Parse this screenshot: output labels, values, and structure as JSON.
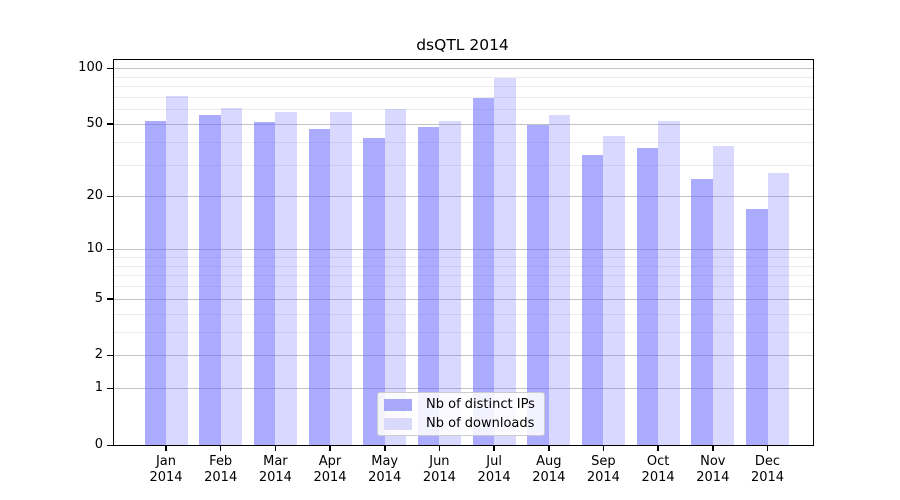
{
  "figure": {
    "background": "#ffffff",
    "spine_color": "#000000",
    "major_grid_color": "#c3c3c3",
    "minor_grid_color": "#ebebeb"
  },
  "chart_data": {
    "type": "bar",
    "title": "dsQTL 2014",
    "categories": [
      "Jan 2014",
      "Feb 2014",
      "Mar 2014",
      "Apr 2014",
      "May 2014",
      "Jun 2014",
      "Jul 2014",
      "Aug 2014",
      "Sep 2014",
      "Oct 2014",
      "Nov 2014",
      "Dec 2014"
    ],
    "month_labels": [
      "Jan",
      "Feb",
      "Mar",
      "Apr",
      "May",
      "Jun",
      "Jul",
      "Aug",
      "Sep",
      "Oct",
      "Nov",
      "Dec"
    ],
    "year_label": "2014",
    "series": [
      {
        "name": "Nb of distinct IPs",
        "color": "rgba(102,102,255,0.55)",
        "solid_color": "#a9a9fb",
        "values": [
          52,
          56,
          51,
          47,
          42,
          48,
          69,
          49,
          34,
          37,
          25,
          17
        ]
      },
      {
        "name": "Nb of downloads",
        "color": "rgba(102,102,255,0.25)",
        "solid_color": "#d9d9fb",
        "values": [
          71,
          61,
          58,
          58,
          60,
          52,
          88,
          56,
          43,
          52,
          38,
          27
        ]
      }
    ],
    "yscale": "log1p",
    "ylim": [
      0,
      100
    ],
    "ytick_labels": [
      0,
      1,
      2,
      5,
      10,
      20,
      50,
      100
    ],
    "minor_gridlines": [
      3,
      4,
      6,
      7,
      8,
      9,
      30,
      40,
      60,
      70,
      80,
      90
    ],
    "grid": true,
    "legend_position": "lower center"
  }
}
